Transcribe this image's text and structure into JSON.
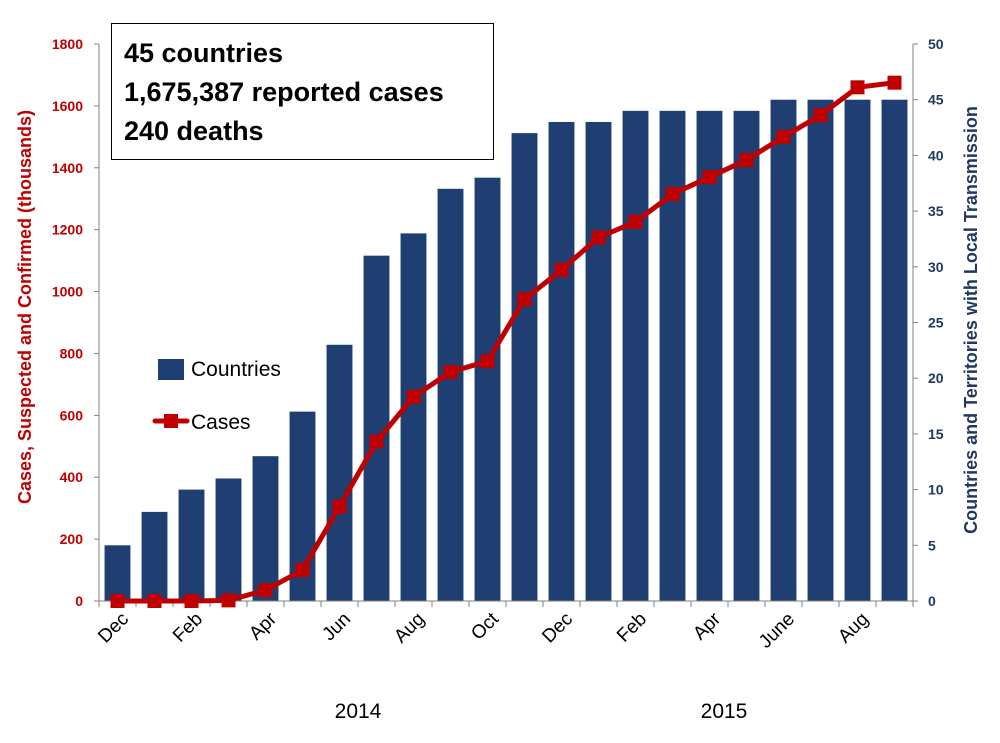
{
  "chart_data": {
    "type": "bar",
    "annotation": [
      "45 countries",
      "1,675,387 reported cases",
      "240 deaths"
    ],
    "x_tick_labels": [
      "Dec",
      "Feb",
      "Apr",
      "Jun",
      "Aug",
      "Oct",
      "Dec",
      "Feb",
      "Apr",
      "June",
      "Aug"
    ],
    "year_labels": [
      "2014",
      "2015"
    ],
    "ylabel_left": "Cases, Suspected and Confirmed  (thousands)",
    "ylabel_right": "Countries and Territories with Local Transmission",
    "ylim_left": [
      0,
      1800
    ],
    "ylim_right": [
      0,
      50
    ],
    "left_ticks": [
      0,
      200,
      400,
      600,
      800,
      1000,
      1200,
      1400,
      1600,
      1800
    ],
    "right_ticks": [
      0,
      5,
      10,
      15,
      20,
      25,
      30,
      35,
      40,
      45,
      50
    ],
    "legend": {
      "placement": "center-left"
    },
    "series": [
      {
        "name": "Countries",
        "type": "bar",
        "axis": "right",
        "color": "#1f3f73",
        "values": [
          5,
          8,
          10,
          11,
          13,
          17,
          23,
          31,
          33,
          37,
          38,
          42,
          43,
          43,
          44,
          44,
          44,
          44,
          45,
          45,
          45,
          45
        ]
      },
      {
        "name": "Cases",
        "type": "line",
        "axis": "left",
        "color": "#c00000",
        "values": [
          0,
          0,
          0,
          2,
          35,
          100,
          305,
          515,
          660,
          740,
          775,
          975,
          1070,
          1175,
          1225,
          1315,
          1370,
          1425,
          1500,
          1570,
          1660,
          1675
        ]
      }
    ]
  }
}
